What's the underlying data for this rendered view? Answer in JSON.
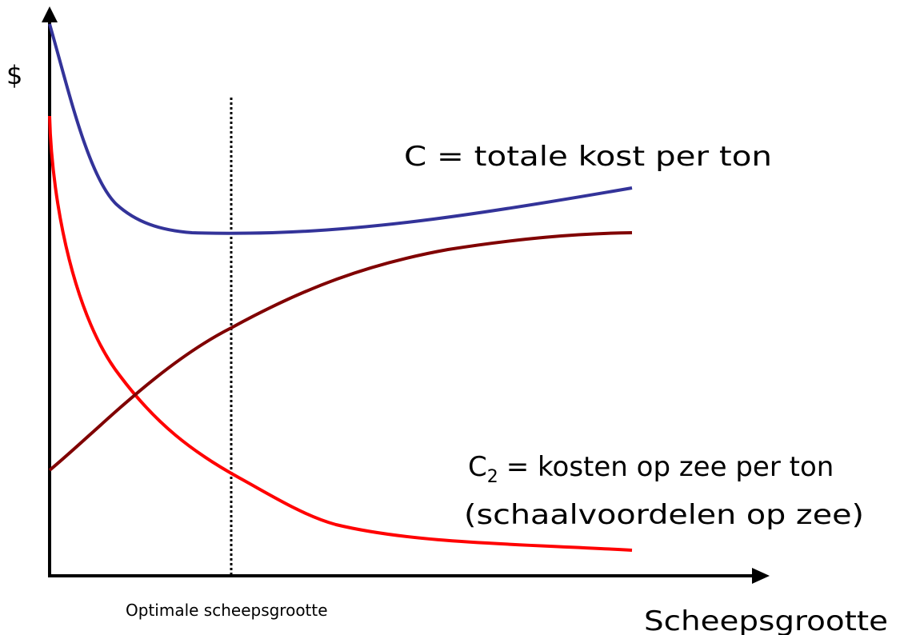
{
  "axes": {
    "y_label": "$",
    "x_label": "Scheepsgrootte",
    "optimum_label": "Optimale scheepsgrootte"
  },
  "curves": {
    "total": {
      "label": "C = totale kost per ton"
    },
    "sea": {
      "symbol": "C",
      "subscript": "2",
      "label": "= kosten op zee per ton",
      "note": "(schaalvoordelen op zee)"
    }
  }
}
